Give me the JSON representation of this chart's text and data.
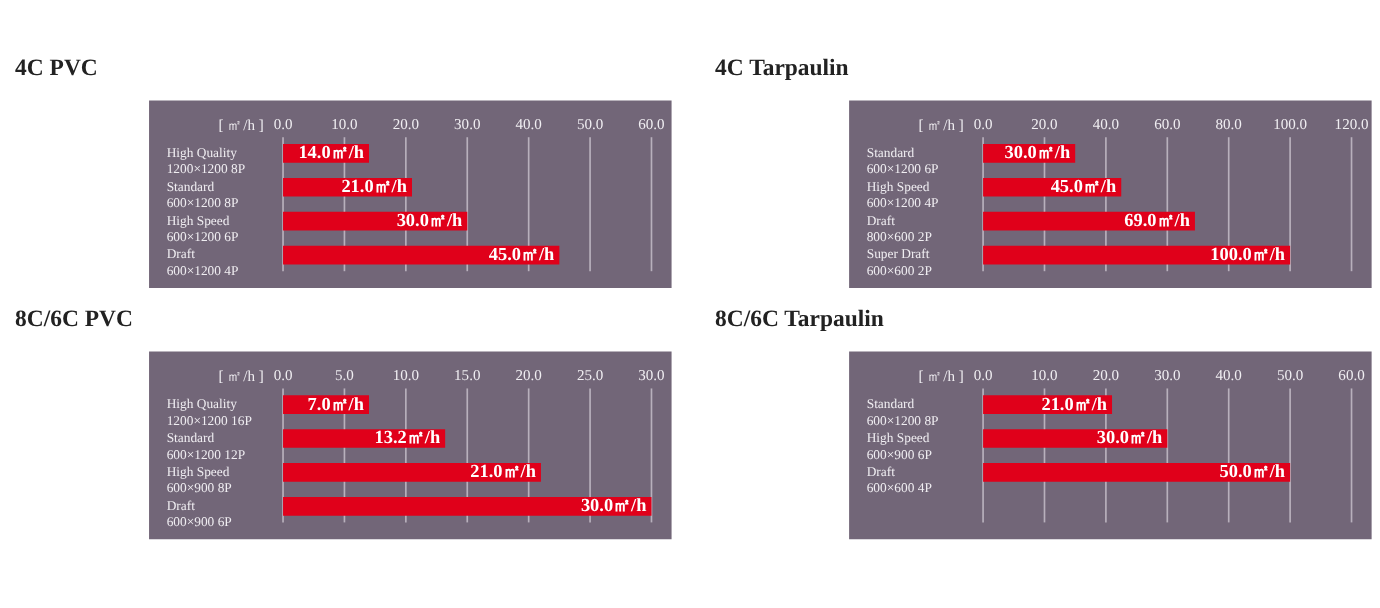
{
  "chart_data": [
    {
      "type": "bar",
      "orientation": "horizontal",
      "title": "4C PVC",
      "xlabel": "[ ㎡/h ]",
      "grid": "x",
      "color": "#e0001a",
      "categories": [
        "High Quality\n1200×1200 8P",
        "Standard\n600×1200 8P",
        "High Speed\n600×1200 6P",
        "Draft\n600×1200 4P"
      ],
      "values": [
        14.0,
        21.0,
        30.0,
        45.0
      ],
      "value_labels": [
        "14.0㎡/h",
        "21.0㎡/h",
        "30.0㎡/h",
        "45.0㎡/h"
      ],
      "xlim": [
        0,
        60
      ],
      "xticks": [
        {
          "value": 0,
          "label": "0.0"
        },
        {
          "value": 10,
          "label": "10.0"
        },
        {
          "value": 20,
          "label": "20.0"
        },
        {
          "value": 30,
          "label": "30.0"
        },
        {
          "value": 40,
          "label": "40.0"
        },
        {
          "value": 50,
          "label": "50.0"
        },
        {
          "value": 60,
          "label": "60.0"
        }
      ]
    },
    {
      "type": "bar",
      "orientation": "horizontal",
      "title": "4C Tarpaulin",
      "xlabel": "[ ㎡/h ]",
      "grid": "x",
      "color": "#e0001a",
      "categories": [
        "Standard\n600×1200 6P",
        "High Speed\n600×1200 4P",
        "Draft\n800×600 2P",
        "Super Draft\n600×600 2P"
      ],
      "values": [
        30.0,
        45.0,
        69.0,
        100.0
      ],
      "value_labels": [
        "30.0㎡/h",
        "45.0㎡/h",
        "69.0㎡/h",
        "100.0㎡/h"
      ],
      "xlim": [
        0,
        120
      ],
      "xticks": [
        {
          "value": 0,
          "label": "0.0"
        },
        {
          "value": 20,
          "label": "20.0"
        },
        {
          "value": 40,
          "label": "40.0"
        },
        {
          "value": 60,
          "label": "60.0"
        },
        {
          "value": 80,
          "label": "80.0"
        },
        {
          "value": 100,
          "label": "100.0"
        },
        {
          "value": 120,
          "label": "120.0"
        }
      ]
    },
    {
      "type": "bar",
      "orientation": "horizontal",
      "title": "8C/6C PVC",
      "xlabel": "[ ㎡/h ]",
      "grid": "x",
      "color": "#e0001a",
      "categories": [
        "High Quality\n1200×1200 16P",
        "Standard\n600×1200 12P",
        "High Speed\n600×900 8P",
        "Draft\n600×900 6P"
      ],
      "values": [
        7.0,
        13.2,
        21.0,
        30.0
      ],
      "value_labels": [
        "7.0㎡/h",
        "13.2㎡/h",
        "21.0㎡/h",
        "30.0㎡/h"
      ],
      "xlim": [
        0,
        30
      ],
      "xticks": [
        {
          "value": 0,
          "label": "0.0"
        },
        {
          "value": 5,
          "label": "5.0"
        },
        {
          "value": 10,
          "label": "10.0"
        },
        {
          "value": 15,
          "label": "15.0"
        },
        {
          "value": 20,
          "label": "20.0"
        },
        {
          "value": 25,
          "label": "25.0"
        },
        {
          "value": 30,
          "label": "30.0"
        }
      ]
    },
    {
      "type": "bar",
      "orientation": "horizontal",
      "title": "8C/6C Tarpaulin",
      "xlabel": "[ ㎡/h ]",
      "grid": "x",
      "color": "#e0001a",
      "categories": [
        "Standard\n600×1200 8P",
        "High Speed\n600×900 6P",
        "Draft\n600×600 4P"
      ],
      "values": [
        21.0,
        30.0,
        50.0
      ],
      "value_labels": [
        "21.0㎡/h",
        "30.0㎡/h",
        "50.0㎡/h"
      ],
      "xlim": [
        0,
        60
      ],
      "xticks": [
        {
          "value": 0,
          "label": "0.0"
        },
        {
          "value": 10,
          "label": "10.0"
        },
        {
          "value": 20,
          "label": "20.0"
        },
        {
          "value": 30,
          "label": "30.0"
        },
        {
          "value": 40,
          "label": "40.0"
        },
        {
          "value": 50,
          "label": "50.0"
        },
        {
          "value": 60,
          "label": "60.0"
        }
      ]
    }
  ]
}
